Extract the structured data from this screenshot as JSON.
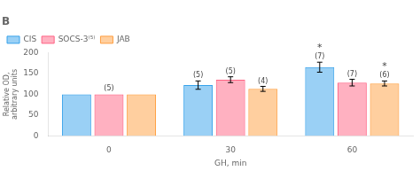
{
  "chart_data": {
    "type": "bar",
    "title": "B",
    "categories": [
      "0",
      "30",
      "60"
    ],
    "series": [
      {
        "name": "CIS",
        "values": [
          100,
          122,
          165
        ],
        "errors": [
          0,
          10,
          12
        ]
      },
      {
        "name": "SOCS-3⁽⁵⁾",
        "values": [
          100,
          135,
          128
        ],
        "errors": [
          0,
          7,
          8
        ]
      },
      {
        "name": "JAB",
        "values": [
          100,
          113,
          126
        ],
        "errors": [
          0,
          6,
          6
        ]
      }
    ],
    "x_label": "GH, min",
    "y_label": "Relative OD,\narbitrary units",
    "ylim": [
      0,
      200
    ],
    "yticks": [
      0,
      50,
      100,
      150,
      200
    ],
    "grid": false,
    "legend": "upper left",
    "annotations": [
      {
        "series": "CIS",
        "category": "30",
        "text": "(5)"
      },
      {
        "series": "CIS",
        "category": "60",
        "text": "(7)"
      },
      {
        "series": "SOCS-3⁽⁵⁾",
        "category": "0",
        "text": "(5)"
      },
      {
        "series": "SOCS-3⁽⁵⁾",
        "category": "30",
        "text": "(5)"
      },
      {
        "series": "SOCS-3⁽⁵⁾",
        "category": "60",
        "text": "(7)"
      },
      {
        "series": "JAB",
        "category": "30",
        "text": "(4)"
      },
      {
        "series": "JAB",
        "category": "60",
        "text": "(6)"
      },
      {
        "series": "CIS",
        "category": "60",
        "text": "*"
      },
      {
        "series": "JAB",
        "category": "60",
        "text": "*"
      }
    ]
  }
}
